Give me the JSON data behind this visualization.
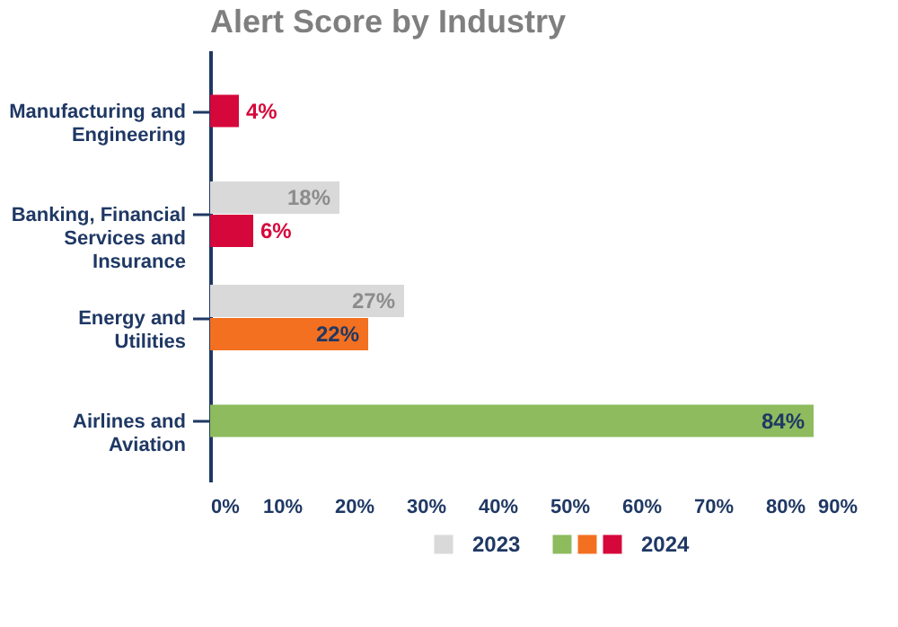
{
  "chart_data": {
    "type": "bar",
    "orientation": "horizontal",
    "title": "Alert Score by Industry",
    "categories": [
      "Manufacturing and Engineering",
      "Banking, Financial Services and Insurance",
      "Energy and Utilities",
      "Airlines and Aviation"
    ],
    "series": [
      {
        "name": "2023",
        "color": "#d9d9d9",
        "values": [
          null,
          18,
          27,
          null
        ],
        "value_labels": [
          null,
          "18%",
          "27%",
          null
        ]
      },
      {
        "name": "2024",
        "colors": [
          "#d6083b",
          "#d6083b",
          "#f37021",
          "#8dbb5e"
        ],
        "values": [
          4,
          6,
          22,
          84
        ],
        "value_labels": [
          "4%",
          "6%",
          "22%",
          "84%"
        ]
      }
    ],
    "xlim": [
      0,
      90
    ],
    "xticks": [
      {
        "value": 0,
        "label": "0%"
      },
      {
        "value": 10,
        "label": "10%"
      },
      {
        "value": 20,
        "label": "20%"
      },
      {
        "value": 30,
        "label": "30%"
      },
      {
        "value": 40,
        "label": "40%"
      },
      {
        "value": 50,
        "label": "50%"
      },
      {
        "value": 60,
        "label": "60%"
      },
      {
        "value": 70,
        "label": "70%"
      },
      {
        "value": 80,
        "label": "80%"
      },
      {
        "value": 90,
        "label": "90%"
      }
    ],
    "grid": false,
    "legend": "bottom"
  }
}
